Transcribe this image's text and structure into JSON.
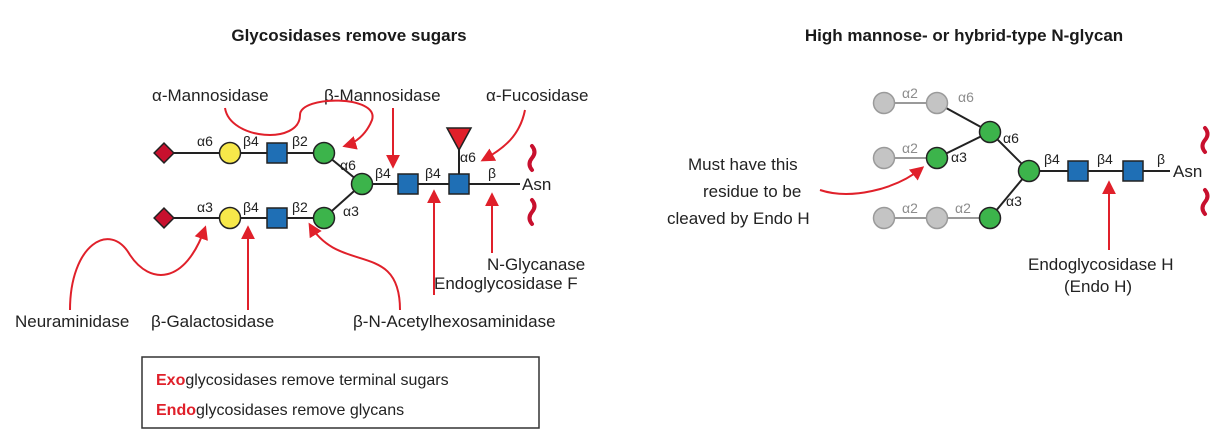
{
  "left_panel": {
    "title": "Glycosidases remove sugars",
    "enzymes": {
      "alpha_mannosidase": "α-Mannosidase",
      "beta_mannosidase": "β-Mannosidase",
      "alpha_fucosidase": "α-Fucosidase",
      "neuraminidase": "Neuraminidase",
      "beta_galactosidase": "β-Galactosidase",
      "beta_n_acetylhexosaminidase": "β-N-Acetylhexosaminidase",
      "n_glycanase": "N-Glycanase",
      "endoglycosidase_f": "Endoglycosidase F"
    },
    "linkages": {
      "upper_a6": "α6",
      "upper_b4": "β4",
      "upper_b2": "β2",
      "upper_branch": "α6",
      "lower_a3": "α3",
      "lower_b4": "β4",
      "lower_b2": "β2",
      "lower_branch": "α3",
      "core_b4_1": "β4",
      "core_b4_2": "β4",
      "fuc_a6": "α6",
      "core_b": "β"
    },
    "asn": "Asn"
  },
  "right_panel": {
    "title": "High mannose- or hybrid-type N-glycan",
    "linkages": {
      "top_a2": "α2",
      "top_a6": "α6",
      "upper_a2": "α2",
      "upper_a3": "α3",
      "branch_a6": "α6",
      "branch_a3": "α3",
      "lower_a2a": "α2",
      "lower_a2b": "α2",
      "core_b4_1": "β4",
      "core_b4_2": "β4",
      "core_b": "β"
    },
    "asn": "Asn",
    "note_lines": [
      "Must have this",
      "residue to be",
      "cleaved by Endo H"
    ],
    "endo_h_lines": [
      "Endoglycosidase H",
      "(Endo H)"
    ]
  },
  "legend": {
    "exo_prefix": "Exo",
    "exo_rest": "glycosidases remove terminal sugars",
    "endo_prefix": "Endo",
    "endo_rest": "glycosidases remove glycans"
  },
  "colors": {
    "sialic_acid": "#c8102e",
    "galactose": "#f7e84a",
    "glcnac": "#1f6fb5",
    "mannose": "#3cb44b",
    "fucose": "#e0202a",
    "removed_mannose": "#c4c4c4",
    "arrow": "#e0202a"
  }
}
